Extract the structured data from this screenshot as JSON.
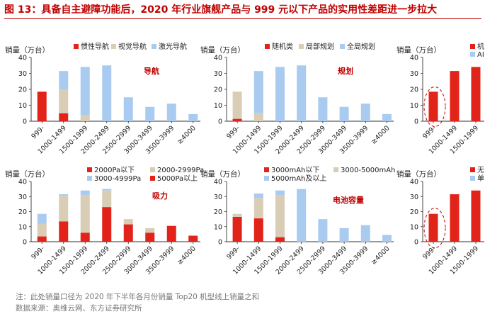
{
  "figure": {
    "title": "图 13：具备自主避障功能后，2020 年行业旗舰产品与 999 元以下产品的实用性差距进一步拉大",
    "note": "注：此处销量口径为 2020 年下半年各月份销量 Top20 机型线上销量之和",
    "source": "数据来源：奥维云网、东方证券研究所"
  },
  "colors": {
    "series1": "#e2231a",
    "series2": "#d9cdb6",
    "series3": "#a9cbf0",
    "accent": "#c00000",
    "axis": "#333333"
  },
  "chart_data": [
    {
      "type": "bar",
      "stacked": true,
      "title": "导航",
      "ylabel": "销量（万台）",
      "ylim": [
        0,
        40
      ],
      "yticks": [
        0,
        10,
        20,
        30,
        40
      ],
      "categories": [
        "999-",
        "1000-1499",
        "1500-1999",
        "2000-2499",
        "2500-2999",
        "3000-3499",
        "3500-3999",
        "≥4000"
      ],
      "series": [
        {
          "name": "惯性导航",
          "values": [
            18.5,
            5,
            0,
            0,
            0,
            0,
            0,
            0
          ]
        },
        {
          "name": "视觉导航",
          "values": [
            0,
            15,
            4,
            0,
            0,
            0,
            0,
            0
          ]
        },
        {
          "name": "激光导航",
          "values": [
            0,
            11.5,
            30,
            35,
            15,
            9,
            11,
            4.5
          ]
        }
      ]
    },
    {
      "type": "bar",
      "stacked": true,
      "title": "规划",
      "ylabel": "销量（万台）",
      "ylim": [
        0,
        40
      ],
      "yticks": [
        0,
        10,
        20,
        30,
        40
      ],
      "categories": [
        "999-",
        "1000-1499",
        "1500-1999",
        "2000-2499",
        "2500-2999",
        "3000-3499",
        "3500-3999",
        "≥4000"
      ],
      "series": [
        {
          "name": "随机类",
          "values": [
            1.5,
            0,
            0,
            0,
            0,
            0,
            0,
            0
          ]
        },
        {
          "name": "局部规划",
          "values": [
            17,
            5,
            0,
            0,
            0,
            0,
            0,
            0
          ]
        },
        {
          "name": "全局规划",
          "values": [
            0,
            26.5,
            34,
            35,
            15,
            9,
            11,
            4.5
          ]
        }
      ]
    },
    {
      "type": "bar",
      "stacked": true,
      "title": "",
      "ylabel": "销量（万台）",
      "ylim": [
        0,
        40
      ],
      "yticks": [
        0,
        10,
        20,
        30,
        40
      ],
      "categories": [
        "999-",
        "1000-1499",
        "1500-1999"
      ],
      "series": [
        {
          "name": "机",
          "values": [
            18.5,
            31.5,
            34
          ]
        },
        {
          "name": "AI",
          "values": [
            0,
            0,
            0
          ]
        }
      ]
    },
    {
      "type": "bar",
      "stacked": true,
      "title": "吸力",
      "ylabel": "销量（万台）",
      "ylim": [
        0,
        40
      ],
      "yticks": [
        0,
        10,
        20,
        30,
        40
      ],
      "categories": [
        "999-",
        "1000-1499",
        "1500-1999",
        "2000-2499",
        "2500-2999",
        "3000-3499",
        "3500-3999",
        "≥4000"
      ],
      "series": [
        {
          "name": "2000Pa以下",
          "values": [
            3.5,
            13.5,
            6,
            23,
            11.5,
            6,
            10.5,
            4
          ]
        },
        {
          "name": "2000-2999Pa",
          "values": [
            8.5,
            17,
            25,
            11,
            3.5,
            3,
            0,
            0
          ]
        },
        {
          "name": "3000-4999Pa",
          "values": [
            6.5,
            1,
            3,
            1,
            0,
            0,
            0,
            0
          ]
        },
        {
          "name": "5000Pa以上",
          "values": [
            0,
            0,
            0,
            0,
            0,
            0,
            0,
            0
          ]
        }
      ]
    },
    {
      "type": "bar",
      "stacked": true,
      "title": "电池容量",
      "ylabel": "销量（万台）",
      "ylim": [
        0,
        40
      ],
      "yticks": [
        0,
        10,
        20,
        30,
        40
      ],
      "categories": [
        "999-",
        "1000-1499",
        "1500-1999",
        "2000-2499",
        "2500-2999",
        "3000-3499",
        "3500-3999",
        "≥4000"
      ],
      "series": [
        {
          "name": "3000mAh以下",
          "values": [
            16.5,
            15.5,
            3,
            0,
            0,
            0,
            0,
            0
          ]
        },
        {
          "name": "3000-5000mAh",
          "values": [
            2,
            13.5,
            28,
            0,
            0,
            0,
            0,
            0
          ]
        },
        {
          "name": "5000mAh及以上",
          "values": [
            0,
            3,
            3,
            35,
            15,
            9,
            11,
            4.5
          ]
        }
      ]
    },
    {
      "type": "bar",
      "stacked": true,
      "title": "",
      "ylabel": "销量（万台）",
      "ylim": [
        0,
        40
      ],
      "yticks": [
        0,
        10,
        20,
        30,
        40
      ],
      "categories": [
        "999-",
        "1000-1499",
        "1500-1999"
      ],
      "series": [
        {
          "name": "无自",
          "values": [
            18.5,
            31.5,
            34
          ]
        },
        {
          "name": "单自",
          "values": [
            0,
            0,
            0
          ]
        }
      ]
    }
  ]
}
